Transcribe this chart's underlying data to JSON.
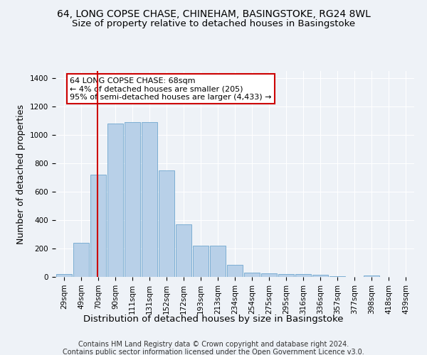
{
  "title1": "64, LONG COPSE CHASE, CHINEHAM, BASINGSTOKE, RG24 8WL",
  "title2": "Size of property relative to detached houses in Basingstoke",
  "xlabel": "Distribution of detached houses by size in Basingstoke",
  "ylabel": "Number of detached properties",
  "footer1": "Contains HM Land Registry data © Crown copyright and database right 2024.",
  "footer2": "Contains public sector information licensed under the Open Government Licence v3.0.",
  "annotation_line1": "64 LONG COPSE CHASE: 68sqm",
  "annotation_line2": "← 4% of detached houses are smaller (205)",
  "annotation_line3": "95% of semi-detached houses are larger (4,433) →",
  "bar_color": "#b8d0e8",
  "bar_edge_color": "#5a9ac8",
  "vline_color": "#cc0000",
  "vline_x": 68,
  "categories": [
    "29sqm",
    "49sqm",
    "70sqm",
    "90sqm",
    "111sqm",
    "131sqm",
    "152sqm",
    "172sqm",
    "193sqm",
    "213sqm",
    "234sqm",
    "254sqm",
    "275sqm",
    "295sqm",
    "316sqm",
    "336sqm",
    "357sqm",
    "377sqm",
    "398sqm",
    "418sqm",
    "439sqm"
  ],
  "bin_edges": [
    19,
    39,
    59,
    79,
    99,
    119,
    139,
    159,
    179,
    199,
    219,
    239,
    259,
    279,
    299,
    319,
    339,
    359,
    379,
    399,
    419,
    439
  ],
  "values": [
    20,
    240,
    720,
    1080,
    1090,
    1090,
    750,
    370,
    220,
    220,
    85,
    30,
    25,
    20,
    20,
    15,
    7,
    0,
    10,
    0,
    0
  ],
  "ylim": [
    0,
    1450
  ],
  "yticks": [
    0,
    200,
    400,
    600,
    800,
    1000,
    1200,
    1400
  ],
  "bg_color": "#eef2f7",
  "plot_bg_color": "#eef2f7",
  "annotation_box_color": "#ffffff",
  "annotation_box_edge": "#cc0000",
  "title_fontsize": 10,
  "subtitle_fontsize": 9.5,
  "axis_label_fontsize": 9,
  "tick_fontsize": 7.5,
  "footer_fontsize": 7,
  "annotation_fontsize": 8
}
